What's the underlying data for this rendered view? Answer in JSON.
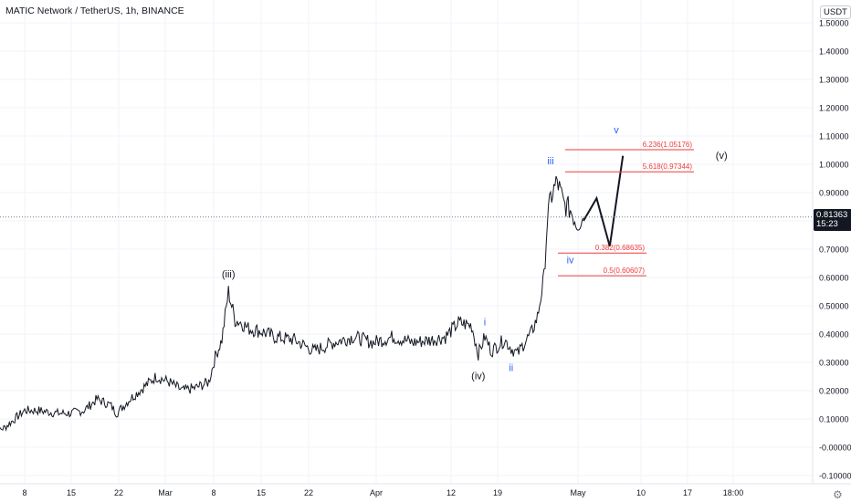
{
  "header": {
    "title": "MATIC Network / TetherUS, 1h, BINANCE",
    "unit": "USDT"
  },
  "price_tag": {
    "price": "0.81363",
    "countdown": "15:23"
  },
  "colors": {
    "candles": "#131722",
    "fib_lines": "#ef3a3a",
    "wave_blue": "#2962ff",
    "wave_black": "#131722",
    "crosshair": "#787b86"
  },
  "icons": {
    "settings": "gear-icon"
  },
  "chart_data": {
    "type": "line",
    "title": "MATIC Network / TetherUS, 1h, BINANCE",
    "ylabel": "USDT",
    "ylim": [
      -0.1,
      1.55
    ],
    "y_ticks": [
      "1.50000",
      "1.40000",
      "1.30000",
      "1.20000",
      "1.10000",
      "1.00000",
      "0.90000",
      "0.80000",
      "0.70000",
      "0.60000",
      "0.50000",
      "0.40000",
      "0.30000",
      "0.20000",
      "0.10000",
      "-0.00000",
      "-0.10000"
    ],
    "x_ticks": [
      "8",
      "15",
      "22",
      "Mar",
      "8",
      "15",
      "22",
      "Apr",
      "12",
      "19",
      "May",
      "10",
      "17",
      "18:00"
    ],
    "series": [
      {
        "x": [
          "Feb 3",
          "Feb 5",
          "Feb 8",
          "Feb 10",
          "Feb 13",
          "Feb 15",
          "Feb 17",
          "Feb 19",
          "Feb 21",
          "Feb 22",
          "Feb 24",
          "Feb 26",
          "Feb 28",
          "Mar 2",
          "Mar 4",
          "Mar 6",
          "Mar 7",
          "Mar 8",
          "Mar 9",
          "Mar 10",
          "Mar 11",
          "Mar 12",
          "Mar 13",
          "Mar 14",
          "Mar 16",
          "Mar 18",
          "Mar 21",
          "Mar 24",
          "Mar 27",
          "Mar 30",
          "Apr 2",
          "Apr 5",
          "Apr 8",
          "Apr 11",
          "Apr 13",
          "Apr 15",
          "Apr 17",
          "Apr 18",
          "Apr 19",
          "Apr 20",
          "Apr 22",
          "Apr 23",
          "Apr 24",
          "Apr 25",
          "Apr 26",
          "Apr 27",
          "Apr 28",
          "Apr 28 12h",
          "Apr 29",
          "Apr 30",
          "May 1",
          "May 2",
          "May 3",
          "May 4"
        ],
        "values": [
          0.05,
          0.07,
          0.13,
          0.13,
          0.12,
          0.12,
          0.13,
          0.17,
          0.15,
          0.12,
          0.17,
          0.21,
          0.25,
          0.23,
          0.2,
          0.21,
          0.22,
          0.23,
          0.32,
          0.38,
          0.55,
          0.45,
          0.44,
          0.42,
          0.41,
          0.39,
          0.38,
          0.34,
          0.37,
          0.39,
          0.37,
          0.39,
          0.37,
          0.38,
          0.39,
          0.44,
          0.43,
          0.33,
          0.39,
          0.34,
          0.38,
          0.35,
          0.33,
          0.37,
          0.4,
          0.46,
          0.6,
          0.8,
          0.88,
          0.94,
          0.86,
          0.84,
          0.79,
          0.81
        ]
      }
    ],
    "projection": {
      "x": [
        "May 4",
        "May 6",
        "May 8",
        "May 10"
      ],
      "values": [
        0.8,
        0.88,
        0.71,
        1.03
      ]
    },
    "fib_levels": [
      {
        "label": "6.236(1.05176)",
        "value": 1.05176
      },
      {
        "label": "5.618(0.97344)",
        "value": 0.97344
      },
      {
        "label": "0.382(0.68635)",
        "value": 0.68635
      },
      {
        "label": "0.5(0.60607)",
        "value": 0.60607
      }
    ],
    "wave_labels": [
      {
        "text": "(iii)",
        "x": "Mar 11",
        "value": 0.6,
        "color": "black"
      },
      {
        "text": "(iv)",
        "x": "Apr 18",
        "value": 0.24,
        "color": "black"
      },
      {
        "text": "i",
        "x": "Apr 19",
        "value": 0.43,
        "color": "blue"
      },
      {
        "text": "ii",
        "x": "Apr 23",
        "value": 0.27,
        "color": "blue"
      },
      {
        "text": "iii",
        "x": "Apr 29",
        "value": 1.0,
        "color": "blue"
      },
      {
        "text": "iv",
        "x": "May 2",
        "value": 0.65,
        "color": "blue"
      },
      {
        "text": "v",
        "x": "May 9",
        "value": 1.11,
        "color": "blue"
      },
      {
        "text": "(v)",
        "x": "May 25",
        "value": 1.02,
        "color": "black"
      }
    ],
    "crosshair_value": 0.81363,
    "grid": true
  }
}
